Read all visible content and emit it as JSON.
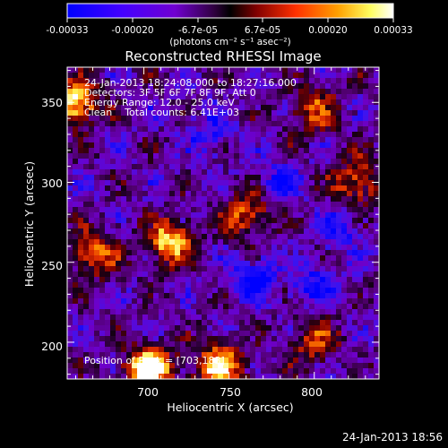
{
  "colorbar": {
    "ticks": [
      "-0.00033",
      "-0.00020",
      "-6.7e-05",
      "6.7e-05",
      "0.00020",
      "0.00033"
    ],
    "units": "(photons cm⁻² s⁻¹ asec⁻²)"
  },
  "plot": {
    "title": "Reconstructed RHESSI Image",
    "xlabel": "Heliocentric X (arcsec)",
    "ylabel": "Heliocentric Y (arcsec)",
    "xticks": [
      "700",
      "750",
      "800"
    ],
    "yticks": [
      "200",
      "250",
      "300",
      "350"
    ]
  },
  "info": {
    "line1": "24-Jan-2013 18:24:08.000 to 18:27:16.000",
    "line2": "Detectors: 3F 5F 6F 7F 8F 9F, Att 0",
    "line3": "Energy Range: 12.0 - 25.0 keV",
    "line4": "Clean    Total counts: 6.41E+03",
    "peak": "Position of Peak = [703,183]"
  },
  "footer": {
    "date": "24-Jan-2013 18:56"
  },
  "chart_data": {
    "type": "heatmap",
    "title": "Reconstructed RHESSI Image",
    "xlabel": "Heliocentric X (arcsec)",
    "ylabel": "Heliocentric Y (arcsec)",
    "xlim": [
      655,
      838
    ],
    "ylim": [
      177,
      372
    ],
    "colorscale_range": [
      -0.00033,
      0.00033
    ],
    "colormap": [
      "#0000ff",
      "#6a00c8",
      "#400040",
      "#000000",
      "#a01000",
      "#ff7000",
      "#ffff80",
      "#ffffff"
    ],
    "hot_regions": [
      {
        "x": 703,
        "y": 183,
        "level": 1.0
      },
      {
        "x": 745,
        "y": 185,
        "level": 0.8
      },
      {
        "x": 660,
        "y": 350,
        "level": 0.8
      },
      {
        "x": 715,
        "y": 262,
        "level": 0.75
      },
      {
        "x": 670,
        "y": 255,
        "level": 0.6
      },
      {
        "x": 760,
        "y": 280,
        "level": 0.55
      },
      {
        "x": 800,
        "y": 345,
        "level": 0.5
      },
      {
        "x": 825,
        "y": 300,
        "level": 0.55
      },
      {
        "x": 800,
        "y": 200,
        "level": 0.45
      }
    ],
    "cold_regions": [
      {
        "x": 765,
        "y": 240,
        "level": 0.9
      },
      {
        "x": 800,
        "y": 235,
        "level": 0.7
      },
      {
        "x": 780,
        "y": 300,
        "level": 0.6
      },
      {
        "x": 815,
        "y": 270,
        "level": 0.6
      },
      {
        "x": 740,
        "y": 330,
        "level": 0.5
      }
    ]
  }
}
